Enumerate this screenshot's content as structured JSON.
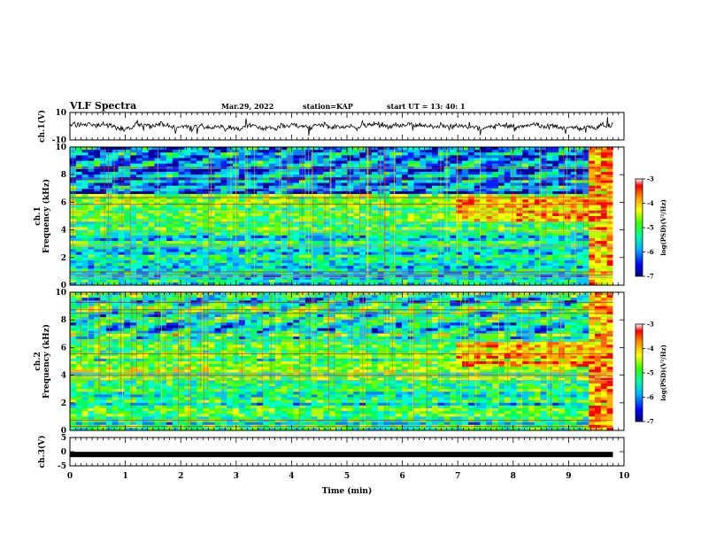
{
  "header": {
    "title": "VLF Spectra",
    "date": "Mar.29, 2022",
    "station": "station=KAP",
    "start_ut": "start UT = 13: 40: 1"
  },
  "chart_data": [
    {
      "type": "line",
      "name": "ch1-waveform",
      "ylabel": "ch.1(V)",
      "ylim": [
        -10,
        10
      ],
      "y_ticks": [
        "10",
        "-10"
      ],
      "xlim": [
        0,
        10
      ],
      "color": "#000000"
    },
    {
      "type": "heatmap",
      "name": "ch1-spectrogram",
      "ylabel": "ch.1\nFrequency (kHz)",
      "ylabel_lines": [
        "ch.1",
        "Frequency (kHz)"
      ],
      "ylim": [
        0,
        10
      ],
      "y_ticks": [
        "0",
        "2",
        "4",
        "6",
        "8",
        "10"
      ],
      "xlim": [
        0,
        10
      ],
      "colorbar": {
        "label": "log(PSD)(V²/Hz)",
        "ticks": [
          "-3",
          "-4",
          "-5",
          "-6",
          "-7"
        ],
        "range": [
          -7,
          -3
        ]
      }
    },
    {
      "type": "heatmap",
      "name": "ch2-spectrogram",
      "ylabel_lines": [
        "ch.2",
        "Frequency (kHz)"
      ],
      "ylim": [
        0,
        10
      ],
      "y_ticks": [
        "0",
        "2",
        "4",
        "6",
        "8",
        "10"
      ],
      "xlim": [
        0,
        10
      ],
      "colorbar": {
        "label": "log(PSD)(V²/Hz)",
        "ticks": [
          "-3",
          "-4",
          "-5",
          "-6",
          "-7"
        ],
        "range": [
          -7,
          -3
        ]
      }
    },
    {
      "type": "line",
      "name": "ch3-trace",
      "ylabel": "ch.3(V)",
      "ylim": [
        -5,
        5
      ],
      "y_ticks": [
        "5",
        "0",
        "-5"
      ],
      "xlim": [
        0,
        10
      ],
      "level": -1,
      "color": "#000000"
    }
  ],
  "x_axis": {
    "label": "Time (min)",
    "ticks": [
      "0",
      "1",
      "2",
      "3",
      "4",
      "5",
      "6",
      "7",
      "8",
      "9",
      "10"
    ]
  }
}
